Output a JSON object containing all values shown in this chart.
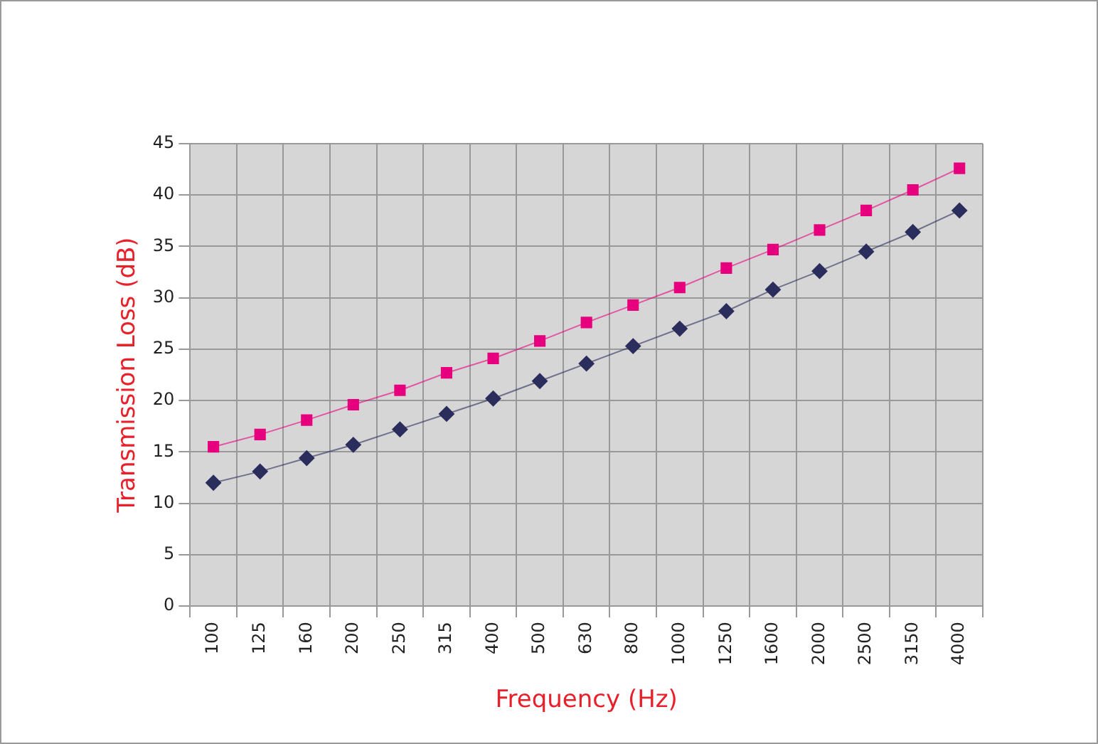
{
  "chart_data": {
    "type": "line",
    "xlabel": "Frequency (Hz)",
    "ylabel": "Transmission Loss (dB)",
    "categories": [
      "100",
      "125",
      "160",
      "200",
      "250",
      "315",
      "400",
      "500",
      "630",
      "800",
      "1000",
      "1250",
      "1600",
      "2000",
      "2500",
      "3150",
      "4000"
    ],
    "series": [
      {
        "color": "#2b2d5c",
        "marker": "diamond",
        "values": [
          12,
          13.1,
          14.4,
          15.7,
          17.2,
          18.7,
          20.2,
          21.9,
          23.6,
          25.3,
          27.0,
          28.7,
          30.8,
          32.6,
          34.5,
          36.4,
          38.5
        ]
      },
      {
        "color": "#e6007e",
        "marker": "square",
        "values": [
          15.5,
          16.7,
          18.1,
          19.6,
          21.0,
          22.7,
          24.1,
          25.8,
          27.6,
          29.3,
          31.0,
          32.9,
          34.7,
          36.6,
          38.5,
          40.5,
          42.6
        ]
      }
    ],
    "ylim": [
      0,
      45
    ],
    "yticks": [
      0,
      5,
      10,
      15,
      20,
      25,
      30,
      35,
      40,
      45
    ],
    "grid": true,
    "legend": false
  }
}
